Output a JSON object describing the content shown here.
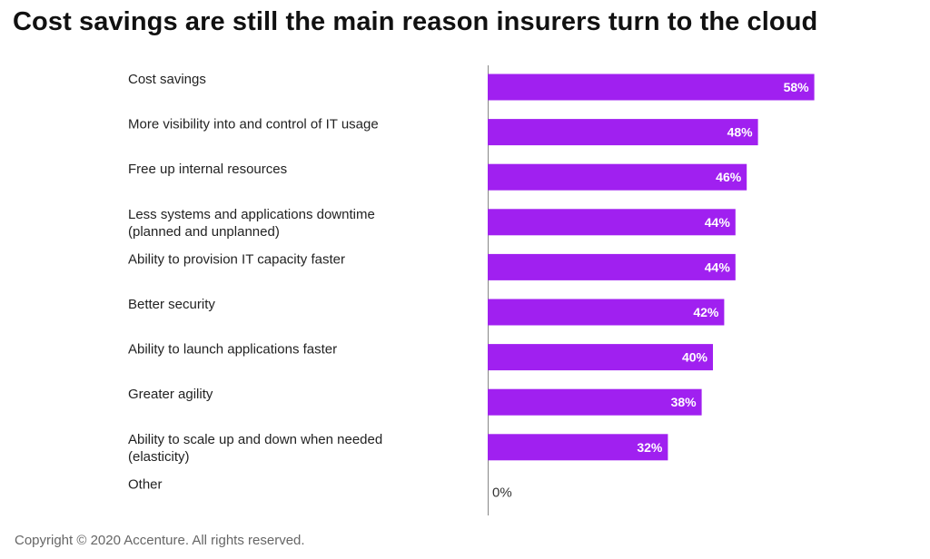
{
  "chart_data": {
    "type": "bar",
    "orientation": "horizontal",
    "title": "Cost savings are still the main reason insurers turn to the cloud",
    "categories": [
      [
        "Cost savings"
      ],
      [
        "More visibility into and control of IT usage"
      ],
      [
        "Free up internal resources"
      ],
      [
        "Less systems and applications downtime",
        "(planned and unplanned)"
      ],
      [
        "Ability to provision IT capacity faster"
      ],
      [
        "Better security"
      ],
      [
        "Ability to launch applications faster"
      ],
      [
        "Greater agility"
      ],
      [
        "Ability to scale up and down when needed",
        "(elasticity)"
      ],
      [
        "Other"
      ]
    ],
    "values": [
      58,
      48,
      46,
      44,
      44,
      42,
      40,
      38,
      32,
      0
    ],
    "value_labels": [
      "58%",
      "48%",
      "46%",
      "44%",
      "44%",
      "42%",
      "40%",
      "38%",
      "32%",
      "0%"
    ],
    "bar_color": "#a020f0",
    "grid": false,
    "legend": "none"
  },
  "footer": {
    "copyright": "Copyright © 2020 Accenture. All rights reserved."
  }
}
